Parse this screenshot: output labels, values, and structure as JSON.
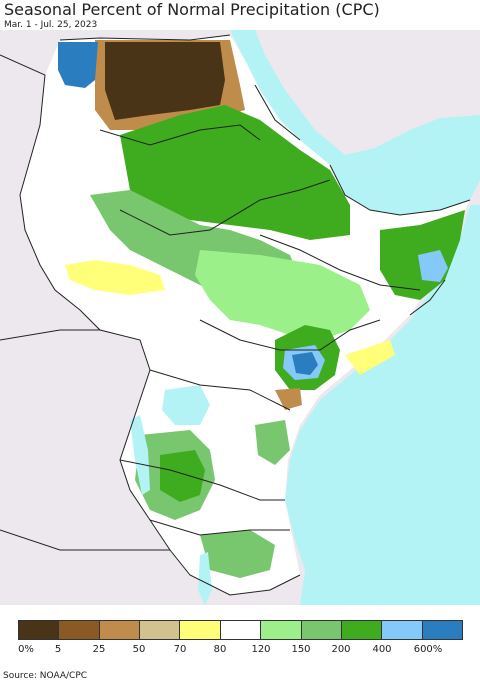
{
  "header": {
    "title": "Seasonal Percent of Normal Precipitation (CPC)",
    "subtitle": "Mar. 1 - Jul. 25, 2023"
  },
  "legend": {
    "colors": [
      "#4a3417",
      "#8b5a24",
      "#c08c4b",
      "#d2c38e",
      "#ffff7a",
      "#ffffff",
      "#9cf08a",
      "#78c66e",
      "#3fac1f",
      "#84c9f8",
      "#2a7dbf"
    ],
    "labels": [
      "0%",
      "5",
      "25",
      "50",
      "70",
      "80",
      "120",
      "150",
      "200",
      "400",
      "600%"
    ]
  },
  "footer": {
    "source": "Source: NOAA/CPC"
  },
  "map_colors": {
    "ocean": "#b3f3f5",
    "land_outside": "#ece8ed",
    "land_normal": "#ffffff",
    "border": "#222222"
  }
}
